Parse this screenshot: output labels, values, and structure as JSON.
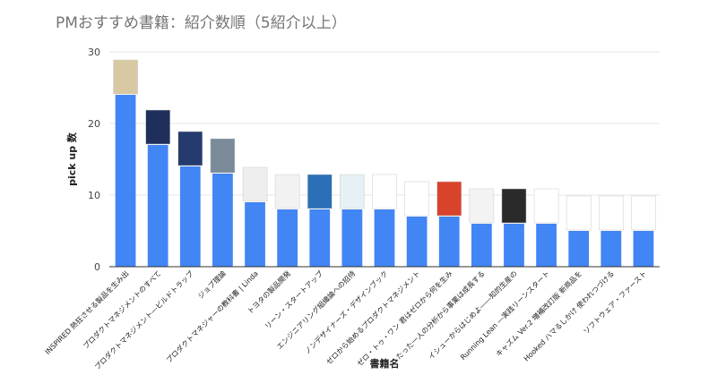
{
  "chart_data": {
    "type": "bar",
    "title": "PMおすすめ書籍：紹介数順（5紹介以上）",
    "xlabel": "書籍名",
    "ylabel": "pick up 数",
    "ylim": [
      0,
      30
    ],
    "yticks": [
      0,
      10,
      20,
      30
    ],
    "grid": true,
    "bar_color": "#4285f4",
    "categories": [
      "INSPIRED 熱狂させる製品を生み出",
      "プロダクトマネジメントのすべて",
      "プロダクトマネジメント―ビルドトラップ",
      "ジョブ理論",
      "プロダクトマネジャーの教科書 | Linda",
      "トヨタの製品開発",
      "リーン・スタートアップ",
      "エンジニアリング組織論への招待",
      "ノンデザイナーズ・デザインブック",
      "ゼロから始めるプロダクトマネジメント",
      "ゼロ・トゥ・ワン 君はゼロから何を生み",
      "たった一人の分析から事業は成長する",
      "イシューからはじめよ――知的生産の",
      "Running Lean ―実践リーンスタート",
      "キャズム Ver.2 増補改訂版 新商品を",
      "Hooked ハマるしかけ 使われつづける",
      "ソフトウェア・ファースト"
    ],
    "values": [
      24,
      17,
      14,
      13,
      9,
      8,
      8,
      8,
      8,
      7,
      7,
      6,
      6,
      6,
      5,
      5,
      5
    ]
  }
}
